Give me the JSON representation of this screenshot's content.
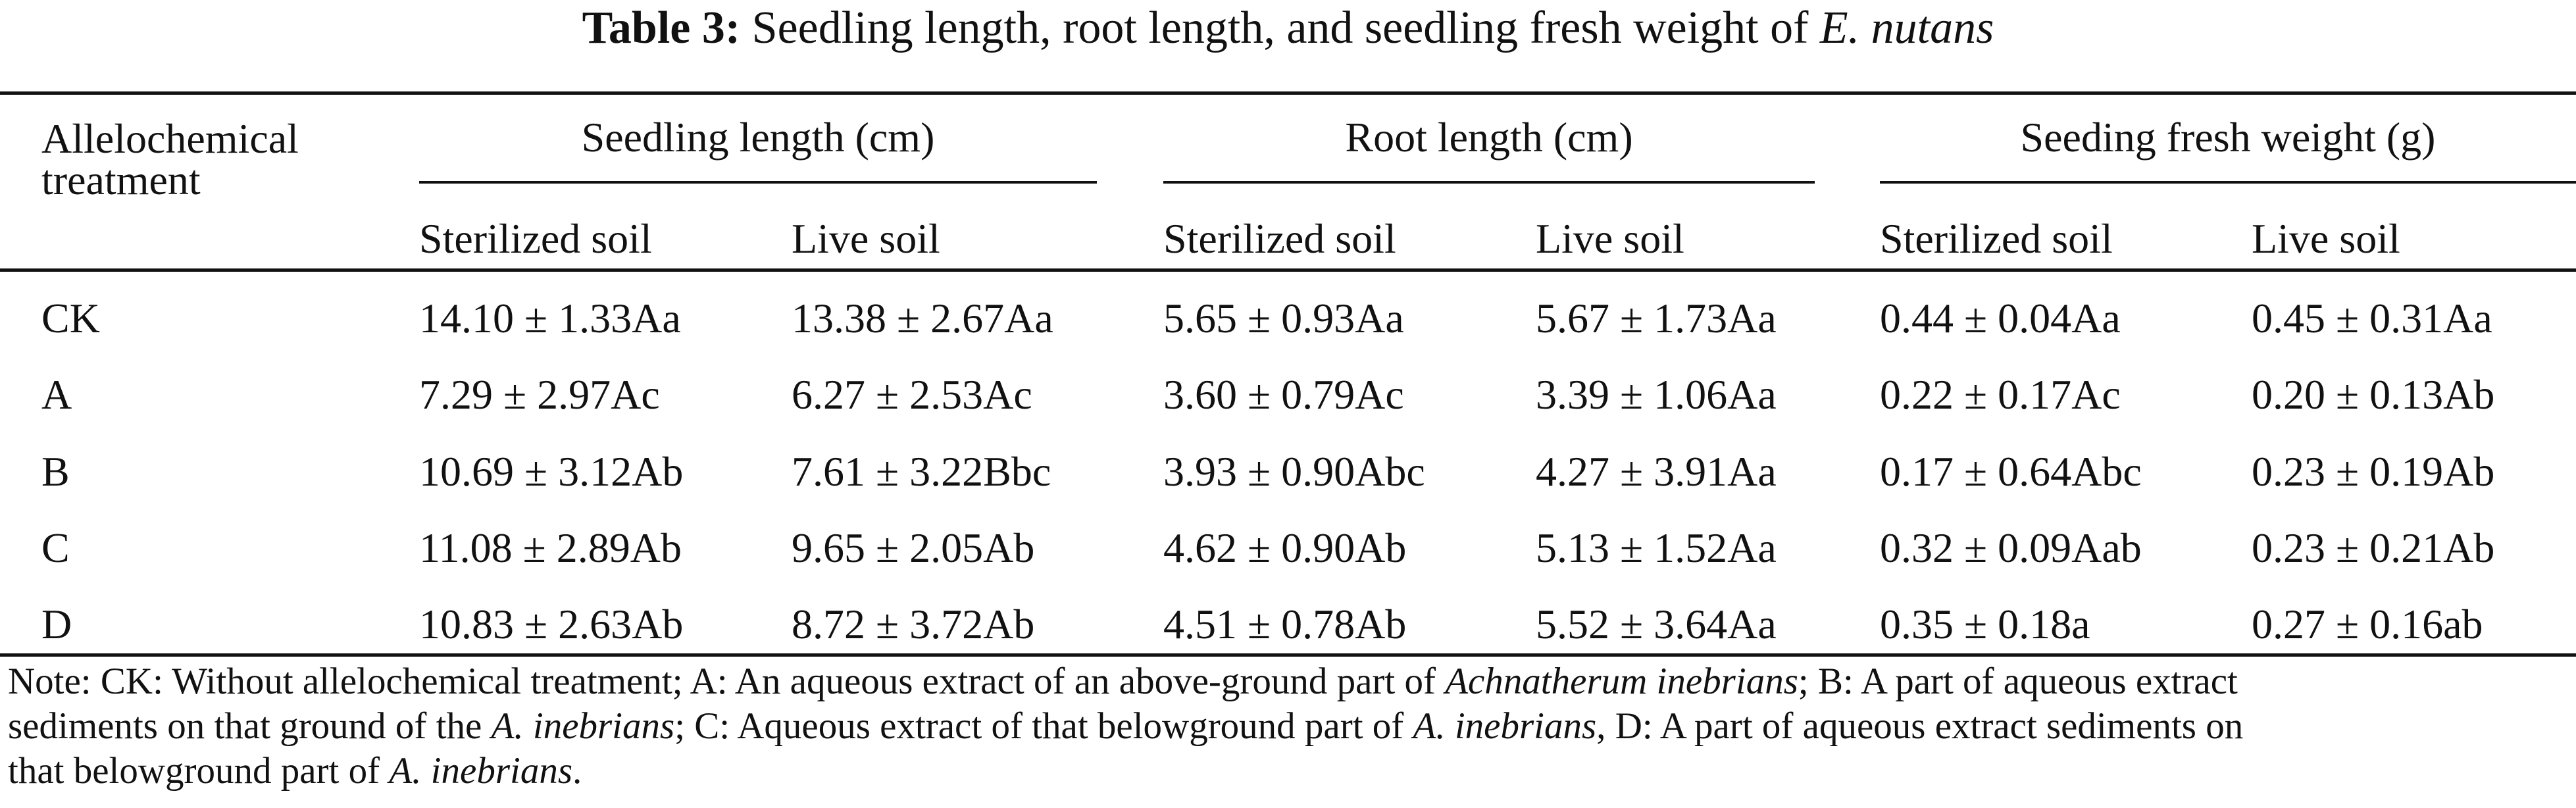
{
  "title": {
    "label": "Table 3:",
    "text": "Seedling length, root length, and seedling fresh weight of",
    "species": "E. nutans"
  },
  "table": {
    "row_header": [
      "Allelochemical",
      "treatment"
    ],
    "groups": [
      {
        "label": "Seedling length (cm)",
        "sub": [
          "Sterilized soil",
          "Live soil"
        ]
      },
      {
        "label": "Root length (cm)",
        "sub": [
          "Sterilized soil",
          "Live soil"
        ]
      },
      {
        "label": "Seeding fresh weight (g)",
        "sub": [
          "Sterilized soil",
          "Live soil"
        ]
      }
    ],
    "rows": [
      {
        "treatment": "CK",
        "values": [
          "14.10 ± 1.33Aa",
          "13.38 ± 2.67Aa",
          "5.65 ± 0.93Aa",
          "5.67 ± 1.73Aa",
          "0.44 ± 0.04Aa",
          "0.45 ± 0.31Aa"
        ]
      },
      {
        "treatment": "A",
        "values": [
          "7.29 ± 2.97Ac",
          "6.27 ± 2.53Ac",
          "3.60 ± 0.79Ac",
          "3.39 ± 1.06Aa",
          "0.22 ± 0.17Ac",
          "0.20 ± 0.13Ab"
        ]
      },
      {
        "treatment": "B",
        "values": [
          "10.69 ± 3.12Ab",
          "7.61 ± 3.22Bbc",
          "3.93 ± 0.90Abc",
          "4.27 ± 3.91Aa",
          "0.17 ± 0.64Abc",
          "0.23 ± 0.19Ab"
        ]
      },
      {
        "treatment": "C",
        "values": [
          "11.08 ± 2.89Ab",
          "9.65 ± 2.05Ab",
          "4.62 ± 0.90Ab",
          "5.13 ± 1.52Aa",
          "0.32 ± 0.09Aab",
          "0.23 ± 0.21Ab"
        ]
      },
      {
        "treatment": "D",
        "values": [
          "10.83 ± 2.63Ab",
          "8.72 ± 3.72Ab",
          "4.51 ± 0.78Ab",
          "5.52 ± 3.64Aa",
          "0.35 ± 0.18a",
          "0.27 ± 0.16ab"
        ]
      }
    ]
  },
  "note": {
    "line1_a": "Note: CK: Without allelochemical treatment; A: An aqueous extract of an above-ground part of ",
    "line1_species": "Achnatherum inebrians",
    "line1_b": "; B: A part of aqueous extract",
    "line2_a": "sediments on that ground of the ",
    "line2_species1": "A. inebrians",
    "line2_b": "; C: Aqueous extract of that belowground part of ",
    "line2_species2": "A. inebrians",
    "line2_c": ", D: A part of aqueous extract sediments on",
    "line3_a": "that belowground part of ",
    "line3_species": "A. inebrians",
    "line3_b": "."
  }
}
